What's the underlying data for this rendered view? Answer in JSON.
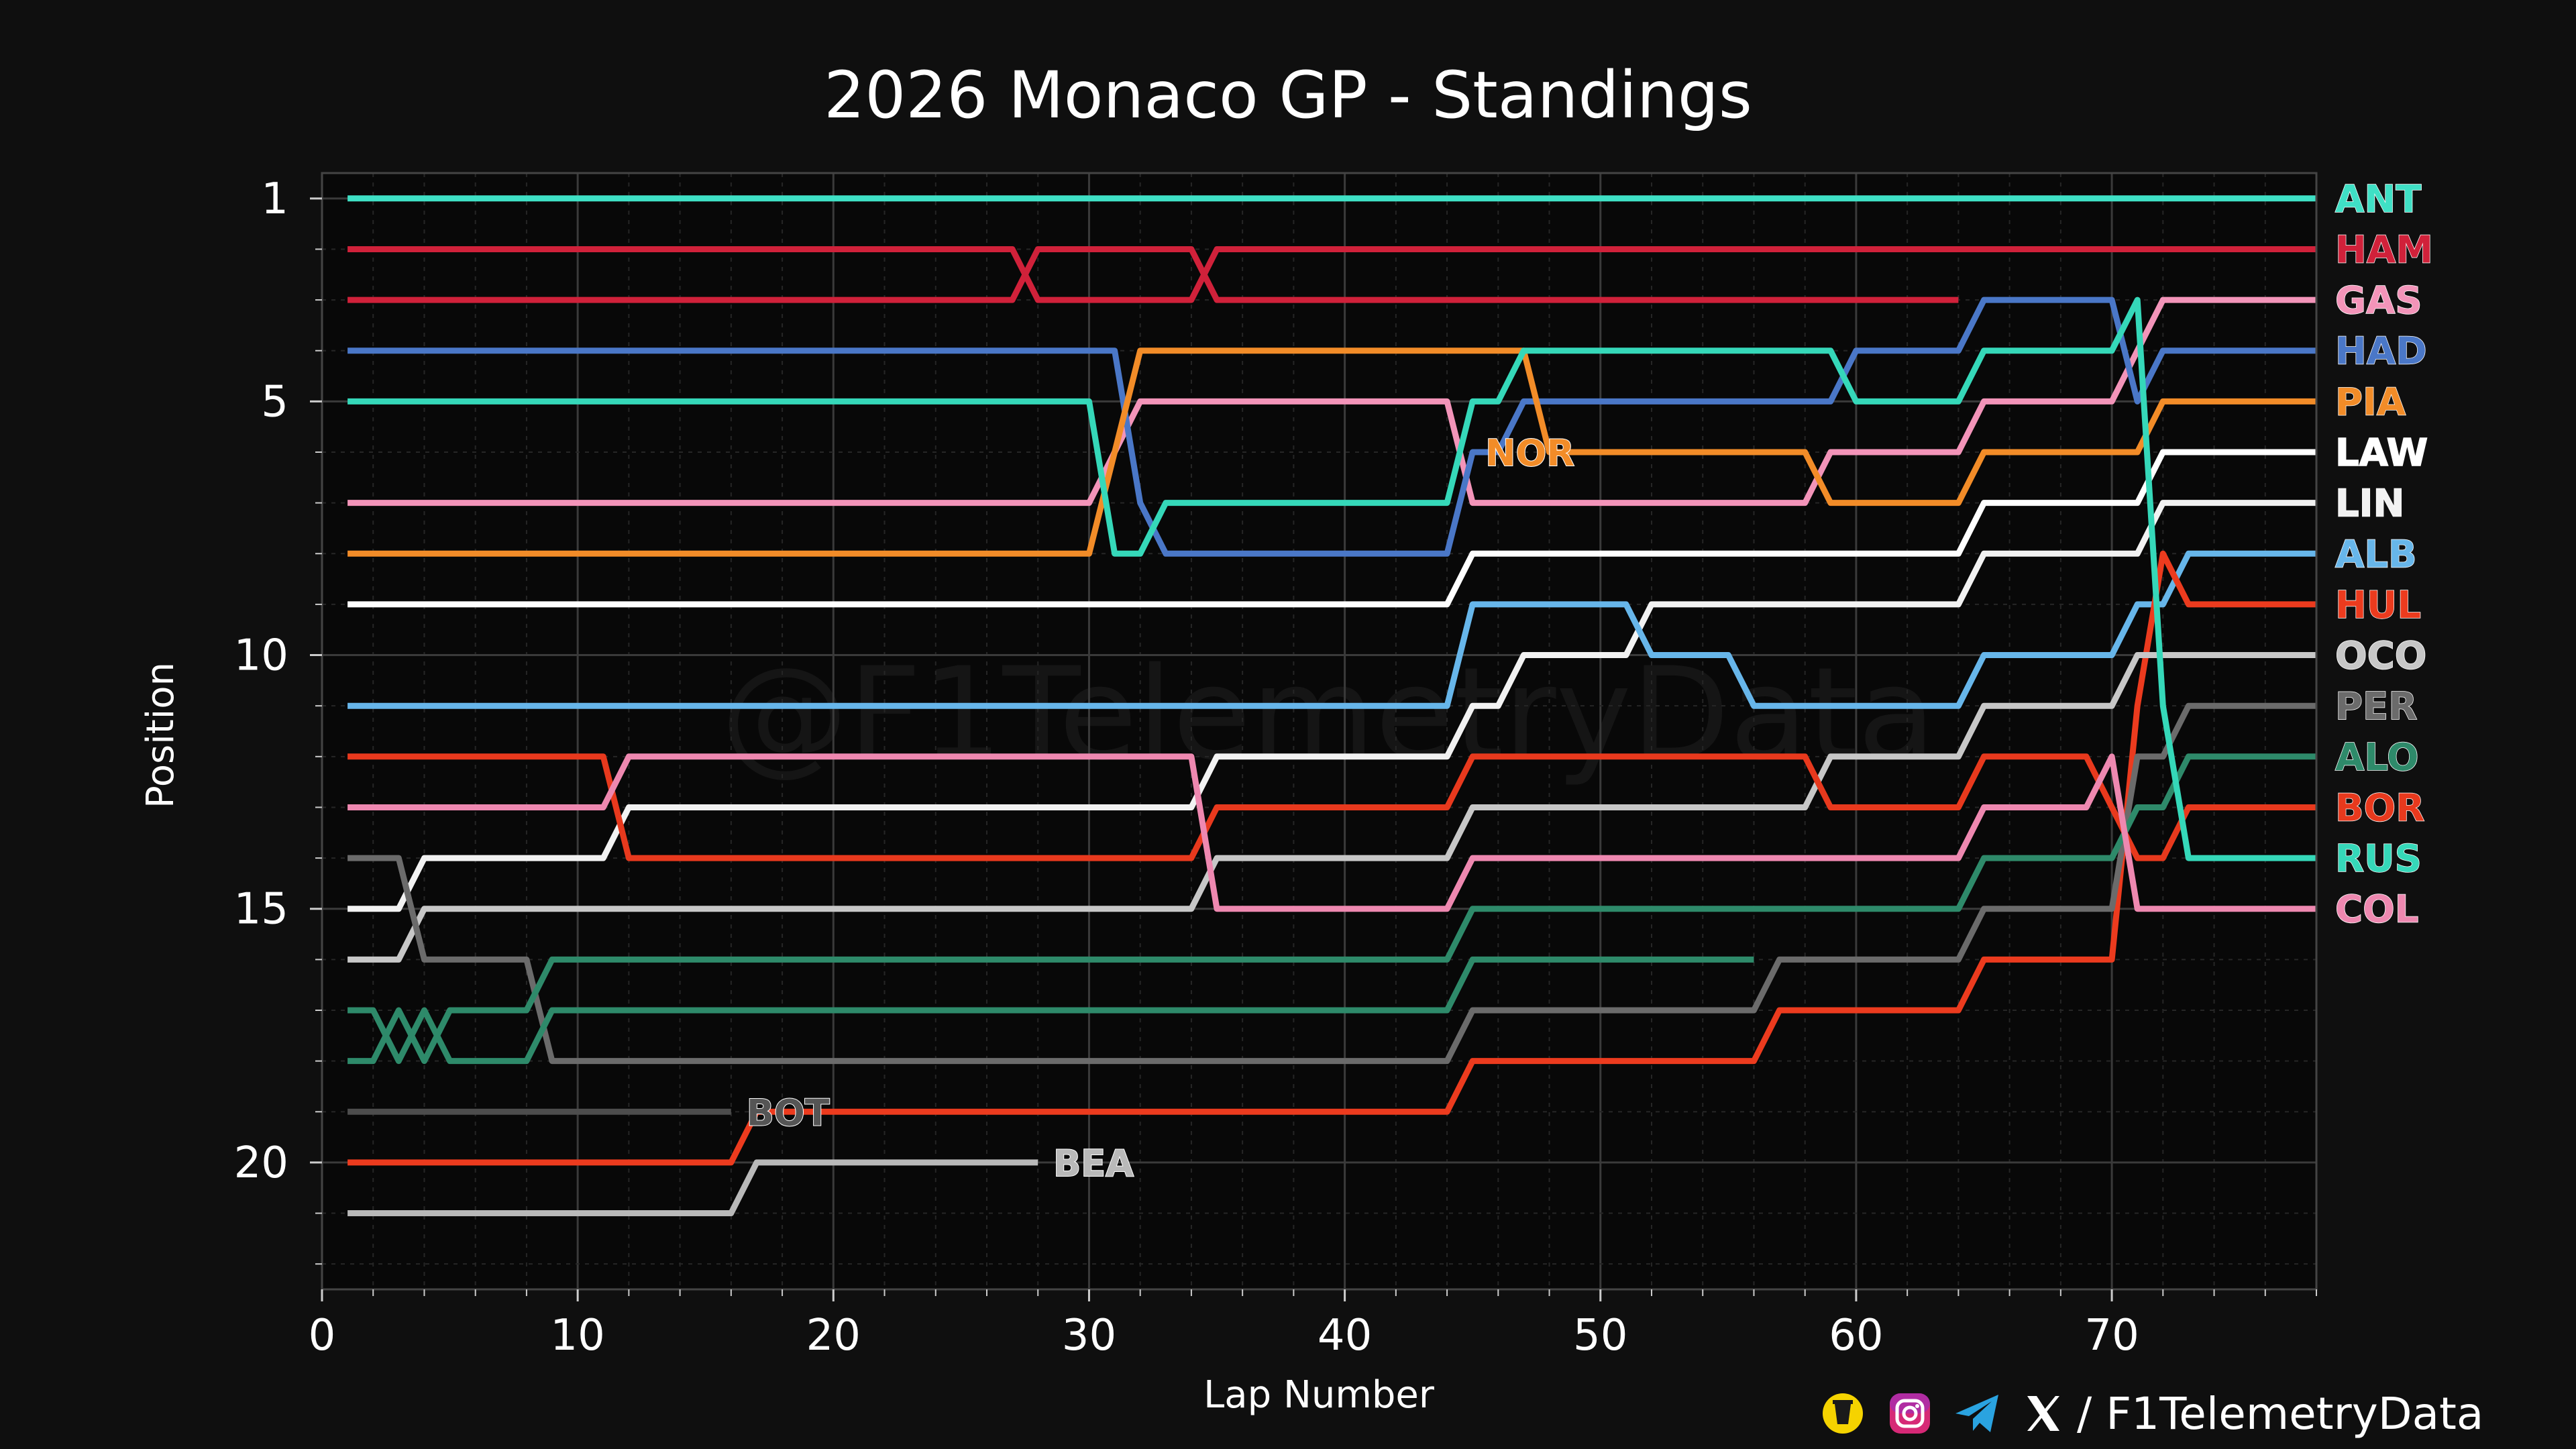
{
  "chart_data": {
    "type": "line",
    "title": "2026 Monaco GP - Standings",
    "xlabel": "Lap Number",
    "ylabel": "Position",
    "xlim": [
      0,
      78
    ],
    "ylim": [
      22.5,
      0.5
    ],
    "x_ticks": [
      0,
      10,
      20,
      30,
      40,
      50,
      60,
      70
    ],
    "x_tick_labels": [
      "0",
      "10",
      "20",
      "30",
      "40",
      "50",
      "60",
      "70"
    ],
    "y_ticks": [
      1,
      5,
      10,
      15,
      20
    ],
    "y_tick_labels": [
      "1",
      "5",
      "10",
      "15",
      "20"
    ],
    "grid": true,
    "y_inverted": true,
    "watermark": "@F1TelemetryData",
    "series": [
      {
        "name": "ANT",
        "color": "#3fe0c5",
        "labeled": true,
        "points": [
          [
            1,
            1
          ],
          [
            78,
            1
          ]
        ]
      },
      {
        "name": "HAM",
        "color": "#d0213a",
        "labeled": true,
        "points": [
          [
            1,
            2
          ],
          [
            27,
            2
          ],
          [
            28,
            3
          ],
          [
            34,
            3
          ],
          [
            35,
            2
          ],
          [
            78,
            2
          ]
        ]
      },
      {
        "name": "",
        "color": "#d0213a",
        "labeled": false,
        "points": [
          [
            1,
            3
          ],
          [
            27,
            3
          ],
          [
            28,
            2
          ],
          [
            34,
            2
          ],
          [
            35,
            3
          ],
          [
            64,
            3
          ]
        ]
      },
      {
        "name": "GAS",
        "color": "#f394b9",
        "labeled": true,
        "points": [
          [
            1,
            7
          ],
          [
            30,
            7
          ],
          [
            32,
            5
          ],
          [
            44,
            5
          ],
          [
            45,
            7
          ],
          [
            58,
            7
          ],
          [
            59,
            6
          ],
          [
            64,
            6
          ],
          [
            65,
            5
          ],
          [
            70,
            5
          ],
          [
            71,
            4
          ],
          [
            72,
            3
          ],
          [
            78,
            3
          ]
        ]
      },
      {
        "name": "HAD",
        "color": "#4a77c7",
        "labeled": true,
        "points": [
          [
            1,
            4
          ],
          [
            31,
            4
          ],
          [
            32,
            7
          ],
          [
            33,
            8
          ],
          [
            44,
            8
          ],
          [
            45,
            6
          ],
          [
            46,
            6
          ],
          [
            47,
            5
          ],
          [
            59,
            5
          ],
          [
            60,
            4
          ],
          [
            64,
            4
          ],
          [
            65,
            3
          ],
          [
            70,
            3
          ],
          [
            71,
            5
          ],
          [
            72,
            4
          ],
          [
            78,
            4
          ]
        ]
      },
      {
        "name": "PIA",
        "color": "#f28c28",
        "labeled": true,
        "points": [
          [
            1,
            8
          ],
          [
            30,
            8
          ],
          [
            32,
            4
          ],
          [
            47,
            4
          ],
          [
            48,
            6
          ],
          [
            58,
            6
          ],
          [
            59,
            7
          ],
          [
            64,
            7
          ],
          [
            65,
            6
          ],
          [
            71,
            6
          ],
          [
            72,
            5
          ],
          [
            78,
            5
          ]
        ]
      },
      {
        "name": "LAW",
        "color": "#ffffff",
        "labeled": true,
        "points": [
          [
            1,
            9
          ],
          [
            44,
            9
          ],
          [
            45,
            8
          ],
          [
            64,
            8
          ],
          [
            65,
            7
          ],
          [
            71,
            7
          ],
          [
            72,
            6
          ],
          [
            78,
            6
          ]
        ]
      },
      {
        "name": "LIN",
        "color": "#f2f2f2",
        "labeled": true,
        "points": [
          [
            1,
            15
          ],
          [
            3,
            15
          ],
          [
            4,
            14
          ],
          [
            11,
            14
          ],
          [
            12,
            13
          ],
          [
            34,
            13
          ],
          [
            35,
            12
          ],
          [
            44,
            12
          ],
          [
            45,
            11
          ],
          [
            46,
            11
          ],
          [
            47,
            10
          ],
          [
            51,
            10
          ],
          [
            52,
            9
          ],
          [
            64,
            9
          ],
          [
            65,
            8
          ],
          [
            71,
            8
          ],
          [
            72,
            7
          ],
          [
            78,
            7
          ]
        ]
      },
      {
        "name": "ALB",
        "color": "#67b6ea",
        "labeled": true,
        "points": [
          [
            1,
            11
          ],
          [
            44,
            11
          ],
          [
            45,
            9
          ],
          [
            51,
            9
          ],
          [
            52,
            10
          ],
          [
            55,
            10
          ],
          [
            56,
            11
          ],
          [
            64,
            11
          ],
          [
            65,
            10
          ],
          [
            70,
            10
          ],
          [
            71,
            9
          ],
          [
            72,
            9
          ],
          [
            73,
            8
          ],
          [
            78,
            8
          ]
        ]
      },
      {
        "name": "HUL",
        "color": "#ec3b1e",
        "labeled": true,
        "points": [
          [
            1,
            20
          ],
          [
            16,
            20
          ],
          [
            17,
            19
          ],
          [
            44,
            19
          ],
          [
            45,
            18
          ],
          [
            56,
            18
          ],
          [
            57,
            17
          ],
          [
            64,
            17
          ],
          [
            65,
            16
          ],
          [
            70,
            16
          ],
          [
            71,
            11
          ],
          [
            72,
            8
          ],
          [
            73,
            9
          ],
          [
            78,
            9
          ]
        ]
      },
      {
        "name": "OCO",
        "color": "#c7c7c7",
        "labeled": true,
        "points": [
          [
            1,
            16
          ],
          [
            3,
            16
          ],
          [
            4,
            15
          ],
          [
            34,
            15
          ],
          [
            35,
            14
          ],
          [
            44,
            14
          ],
          [
            45,
            13
          ],
          [
            58,
            13
          ],
          [
            59,
            12
          ],
          [
            64,
            12
          ],
          [
            65,
            11
          ],
          [
            70,
            11
          ],
          [
            71,
            10
          ],
          [
            78,
            10
          ]
        ]
      },
      {
        "name": "PER",
        "color": "#6b6b6b",
        "labeled": true,
        "points": [
          [
            1,
            14
          ],
          [
            3,
            14
          ],
          [
            4,
            16
          ],
          [
            8,
            16
          ],
          [
            9,
            18
          ],
          [
            44,
            18
          ],
          [
            45,
            17
          ],
          [
            56,
            17
          ],
          [
            57,
            16
          ],
          [
            64,
            16
          ],
          [
            65,
            15
          ],
          [
            70,
            15
          ],
          [
            71,
            12
          ],
          [
            72,
            12
          ],
          [
            73,
            11
          ],
          [
            78,
            11
          ]
        ]
      },
      {
        "name": "ALO",
        "color": "#2e8a6a",
        "labeled": true,
        "points": [
          [
            1,
            18
          ],
          [
            2,
            18
          ],
          [
            3,
            17
          ],
          [
            4,
            18
          ],
          [
            5,
            17
          ],
          [
            8,
            17
          ],
          [
            9,
            16
          ],
          [
            44,
            16
          ],
          [
            45,
            15
          ],
          [
            64,
            15
          ],
          [
            65,
            14
          ],
          [
            70,
            14
          ],
          [
            71,
            13
          ],
          [
            72,
            13
          ],
          [
            73,
            12
          ],
          [
            78,
            12
          ]
        ]
      },
      {
        "name": "",
        "color": "#2e8a6a",
        "labeled": false,
        "points": [
          [
            1,
            17
          ],
          [
            2,
            17
          ],
          [
            3,
            18
          ],
          [
            4,
            17
          ],
          [
            5,
            18
          ],
          [
            8,
            18
          ],
          [
            9,
            17
          ],
          [
            44,
            17
          ],
          [
            45,
            16
          ],
          [
            56,
            16
          ]
        ]
      },
      {
        "name": "BOR",
        "color": "#e8391d",
        "labeled": true,
        "points": [
          [
            1,
            12
          ],
          [
            11,
            12
          ],
          [
            12,
            14
          ],
          [
            34,
            14
          ],
          [
            35,
            13
          ],
          [
            44,
            13
          ],
          [
            45,
            12
          ],
          [
            58,
            12
          ],
          [
            59,
            13
          ],
          [
            64,
            13
          ],
          [
            65,
            12
          ],
          [
            69,
            12
          ],
          [
            70,
            13
          ],
          [
            71,
            14
          ],
          [
            72,
            14
          ],
          [
            73,
            13
          ],
          [
            78,
            13
          ]
        ]
      },
      {
        "name": "RUS",
        "color": "#35d8b9",
        "labeled": true,
        "points": [
          [
            1,
            5
          ],
          [
            30,
            5
          ],
          [
            31,
            8
          ],
          [
            32,
            8
          ],
          [
            33,
            7
          ],
          [
            44,
            7
          ],
          [
            45,
            5
          ],
          [
            46,
            5
          ],
          [
            47,
            4
          ],
          [
            59,
            4
          ],
          [
            60,
            5
          ],
          [
            64,
            5
          ],
          [
            65,
            4
          ],
          [
            70,
            4
          ],
          [
            71,
            3
          ],
          [
            72,
            11
          ],
          [
            73,
            14
          ],
          [
            78,
            14
          ]
        ]
      },
      {
        "name": "COL",
        "color": "#ee88b0",
        "labeled": true,
        "points": [
          [
            1,
            13
          ],
          [
            11,
            13
          ],
          [
            12,
            12
          ],
          [
            34,
            12
          ],
          [
            35,
            15
          ],
          [
            44,
            15
          ],
          [
            45,
            14
          ],
          [
            64,
            14
          ],
          [
            65,
            13
          ],
          [
            69,
            13
          ],
          [
            70,
            12
          ],
          [
            71,
            15
          ],
          [
            78,
            15
          ]
        ]
      },
      {
        "name": "BOT",
        "color": "#4d4d4d",
        "labeled": false,
        "points": [
          [
            1,
            19
          ],
          [
            16,
            19
          ]
        ]
      },
      {
        "name": "BEA",
        "color": "#b9b9b9",
        "labeled": false,
        "points": [
          [
            1,
            21
          ],
          [
            16,
            21
          ],
          [
            17,
            20
          ],
          [
            28,
            20
          ]
        ]
      }
    ],
    "inline_labels": [
      {
        "text": "NOR",
        "x": 45.5,
        "y": 6,
        "color": "#f28c28"
      },
      {
        "text": "BOT",
        "x": 16.6,
        "y": 19,
        "color": "#555555"
      },
      {
        "text": "BEA",
        "x": 28.6,
        "y": 20,
        "color": "#b9b9b9"
      }
    ]
  },
  "footer": {
    "handle": "/ F1TelemetryData",
    "icons": [
      "buymeacoffee-icon",
      "instagram-icon",
      "telegram-icon",
      "x-icon"
    ]
  }
}
